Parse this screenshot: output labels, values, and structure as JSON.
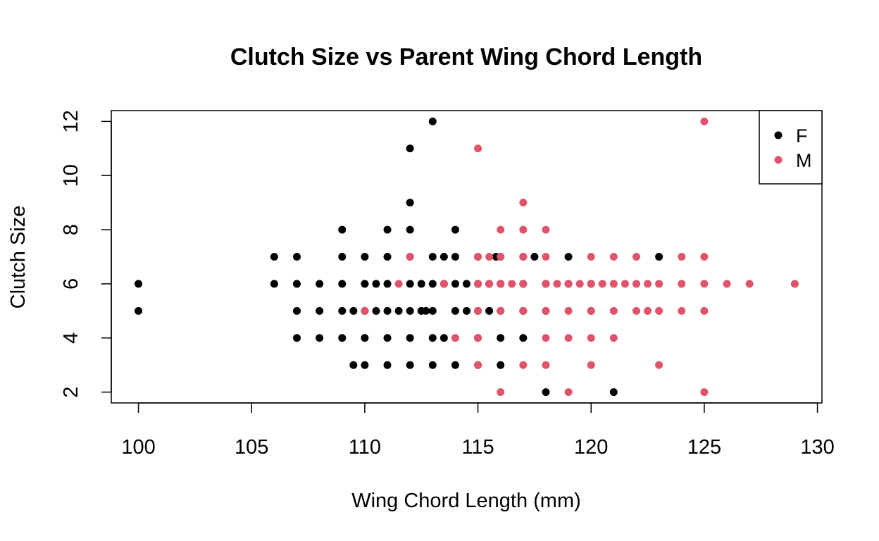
{
  "chart_data": {
    "type": "scatter",
    "title": "Clutch Size vs Parent Wing Chord Length",
    "xlabel": "Wing Chord Length (mm)",
    "ylabel": "Clutch Size",
    "xlim": [
      98.8,
      130.2
    ],
    "ylim": [
      1.6,
      12.4
    ],
    "xticks": [
      100,
      105,
      110,
      115,
      120,
      125,
      130
    ],
    "yticks": [
      2,
      4,
      6,
      8,
      10,
      12
    ],
    "grid": false,
    "legend_position": "top-right",
    "series": [
      {
        "name": "F",
        "color": "#000000",
        "points": [
          [
            100,
            6
          ],
          [
            100,
            5
          ],
          [
            106,
            7
          ],
          [
            106,
            6
          ],
          [
            107,
            7
          ],
          [
            107,
            6
          ],
          [
            107,
            5
          ],
          [
            107,
            4
          ],
          [
            108,
            6
          ],
          [
            108,
            5
          ],
          [
            108,
            4
          ],
          [
            109,
            8
          ],
          [
            109,
            7
          ],
          [
            109,
            6
          ],
          [
            109,
            5
          ],
          [
            109,
            4
          ],
          [
            109.5,
            5
          ],
          [
            109.5,
            3
          ],
          [
            110,
            7
          ],
          [
            110,
            6
          ],
          [
            110,
            5
          ],
          [
            110,
            4
          ],
          [
            110,
            3
          ],
          [
            110.5,
            6
          ],
          [
            110.5,
            5
          ],
          [
            111,
            8
          ],
          [
            111,
            7
          ],
          [
            111,
            6
          ],
          [
            111,
            5
          ],
          [
            111,
            4
          ],
          [
            111,
            3
          ],
          [
            111.5,
            5
          ],
          [
            112,
            11
          ],
          [
            112,
            9
          ],
          [
            112,
            8
          ],
          [
            112,
            7
          ],
          [
            112,
            6
          ],
          [
            112,
            5
          ],
          [
            112,
            4
          ],
          [
            112,
            3
          ],
          [
            112.5,
            6
          ],
          [
            112.5,
            5
          ],
          [
            112.7,
            5
          ],
          [
            113,
            12
          ],
          [
            113,
            7
          ],
          [
            113,
            6
          ],
          [
            113,
            5
          ],
          [
            113,
            4
          ],
          [
            113,
            3
          ],
          [
            113.5,
            7
          ],
          [
            113.5,
            6
          ],
          [
            113.5,
            4
          ],
          [
            114,
            8
          ],
          [
            114,
            7
          ],
          [
            114,
            6
          ],
          [
            114,
            5
          ],
          [
            114,
            3
          ],
          [
            114.5,
            6
          ],
          [
            114.5,
            5
          ],
          [
            115,
            7
          ],
          [
            115,
            6
          ],
          [
            115,
            5
          ],
          [
            115,
            4
          ],
          [
            115,
            3
          ],
          [
            115.5,
            6
          ],
          [
            115.5,
            5
          ],
          [
            115.8,
            7
          ],
          [
            116,
            7
          ],
          [
            116,
            6
          ],
          [
            116,
            5
          ],
          [
            116,
            4
          ],
          [
            116,
            3
          ],
          [
            117,
            7
          ],
          [
            117,
            6
          ],
          [
            117,
            5
          ],
          [
            117,
            4
          ],
          [
            117.5,
            7
          ],
          [
            118,
            6
          ],
          [
            118,
            5
          ],
          [
            118,
            2
          ],
          [
            119,
            7
          ],
          [
            119,
            6
          ],
          [
            120,
            6
          ],
          [
            120,
            5
          ],
          [
            121,
            2
          ],
          [
            123,
            7
          ]
        ]
      },
      {
        "name": "M",
        "color": "#DF536B",
        "points": [
          [
            110,
            5
          ],
          [
            111.5,
            6
          ],
          [
            112,
            7
          ],
          [
            113.5,
            6
          ],
          [
            114,
            4
          ],
          [
            115,
            11
          ],
          [
            115,
            7
          ],
          [
            115,
            6
          ],
          [
            115,
            5
          ],
          [
            115,
            4
          ],
          [
            115,
            3
          ],
          [
            115.5,
            7
          ],
          [
            115.5,
            6
          ],
          [
            116,
            8
          ],
          [
            116,
            7
          ],
          [
            116,
            6
          ],
          [
            116,
            5
          ],
          [
            116,
            2
          ],
          [
            116.5,
            6
          ],
          [
            117,
            9
          ],
          [
            117,
            8
          ],
          [
            117,
            7
          ],
          [
            117,
            6
          ],
          [
            117,
            5
          ],
          [
            117,
            3
          ],
          [
            118,
            8
          ],
          [
            118,
            7
          ],
          [
            118,
            6
          ],
          [
            118,
            5
          ],
          [
            118,
            4
          ],
          [
            118,
            3
          ],
          [
            118.5,
            6
          ],
          [
            119,
            6
          ],
          [
            119,
            5
          ],
          [
            119,
            4
          ],
          [
            119,
            2
          ],
          [
            119.5,
            6
          ],
          [
            120,
            7
          ],
          [
            120,
            6
          ],
          [
            120,
            5
          ],
          [
            120,
            4
          ],
          [
            120,
            3
          ],
          [
            120.5,
            6
          ],
          [
            121,
            7
          ],
          [
            121,
            6
          ],
          [
            121,
            5
          ],
          [
            121,
            4
          ],
          [
            121.5,
            6
          ],
          [
            122,
            7
          ],
          [
            122,
            6
          ],
          [
            122,
            5
          ],
          [
            122.5,
            6
          ],
          [
            122.5,
            5
          ],
          [
            123,
            6
          ],
          [
            123,
            5
          ],
          [
            123,
            3
          ],
          [
            124,
            7
          ],
          [
            124,
            6
          ],
          [
            124,
            5
          ],
          [
            125,
            12
          ],
          [
            125,
            7
          ],
          [
            125,
            6
          ],
          [
            125,
            5
          ],
          [
            125,
            2
          ],
          [
            126,
            6
          ],
          [
            127,
            6
          ],
          [
            129,
            6
          ]
        ]
      }
    ]
  }
}
